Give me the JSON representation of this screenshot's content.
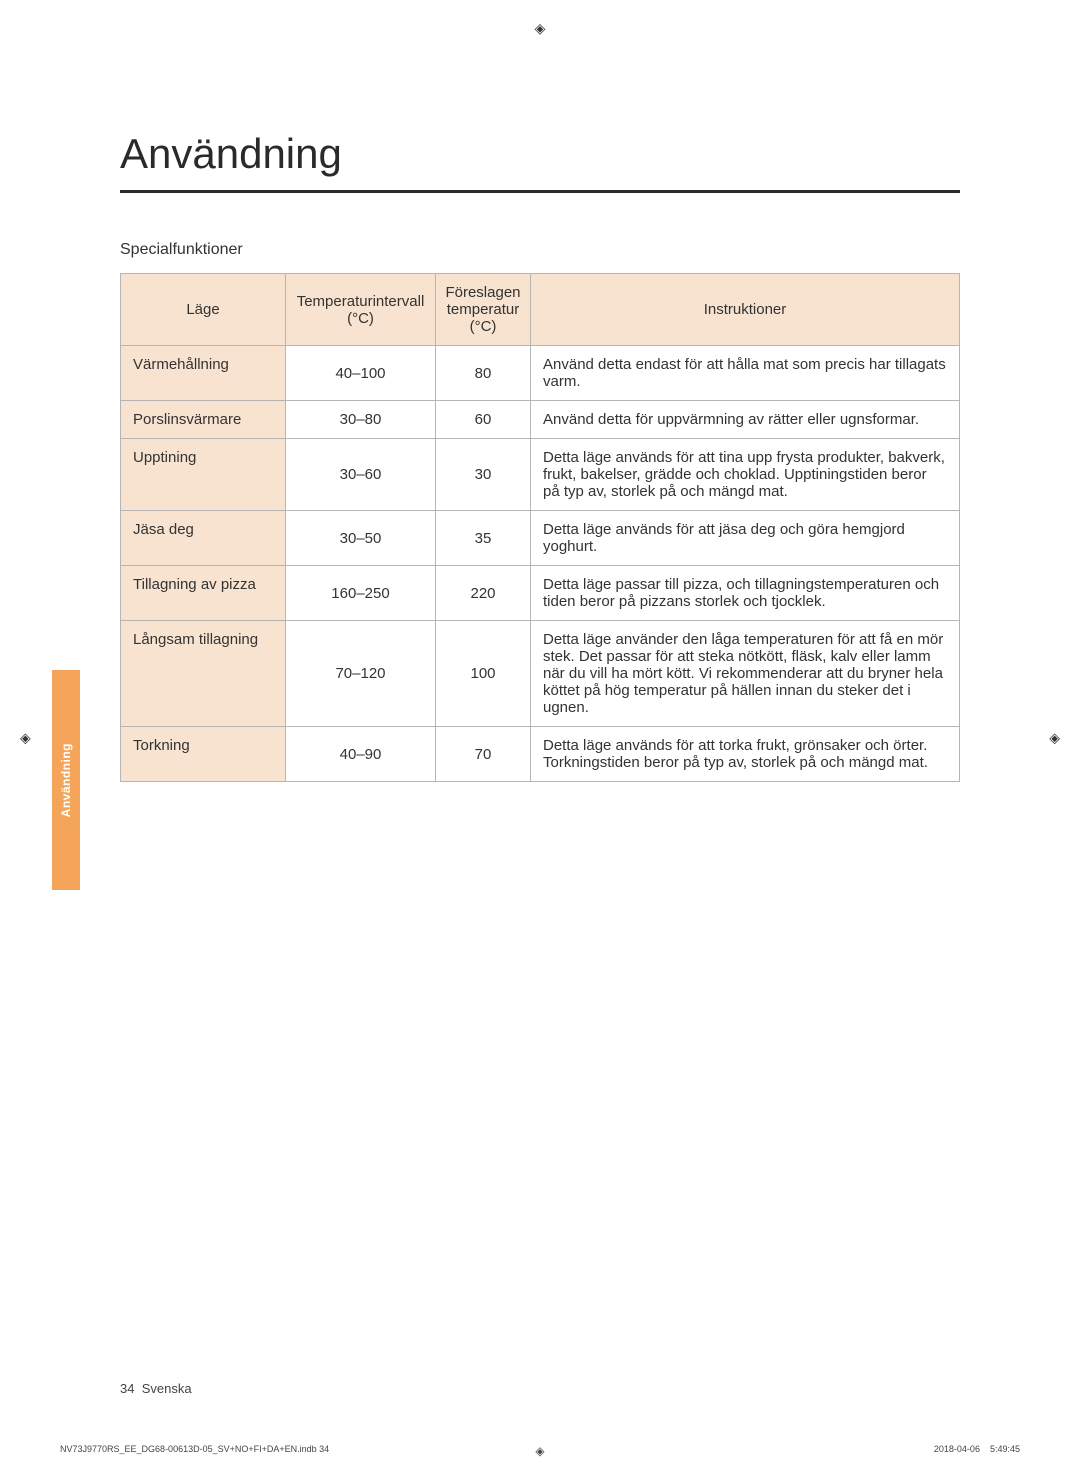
{
  "page": {
    "heading": "Användning",
    "subtitle": "Specialfunktioner",
    "side_tab": "Användning",
    "page_number_label": "34",
    "page_number_lang": "Svenska",
    "print_filename": "NV73J9770RS_EE_DG68-00613D-05_SV+NO+FI+DA+EN.indb   34",
    "print_date": "2018-04-06",
    "print_time": "5:49:45"
  },
  "table": {
    "columns": [
      "Läge",
      "Temperaturintervall (°C)",
      "Föreslagen temperatur (°C)",
      "Instruktioner"
    ],
    "rows": [
      {
        "mode": "Värmehållning",
        "range": "40–100",
        "temp": "80",
        "instr": "Använd detta endast för att hålla mat som precis har tillagats varm."
      },
      {
        "mode": "Porslinsvärmare",
        "range": "30–80",
        "temp": "60",
        "instr": "Använd detta för uppvärmning av rätter eller ugnsformar."
      },
      {
        "mode": "Upptining",
        "range": "30–60",
        "temp": "30",
        "instr": "Detta läge används för att tina upp frysta produkter, bakverk, frukt, bakelser, grädde och choklad. Upptiningstiden beror på typ av, storlek på och mängd mat."
      },
      {
        "mode": "Jäsa deg",
        "range": "30–50",
        "temp": "35",
        "instr": "Detta läge används för att jäsa deg och göra hemgjord yoghurt."
      },
      {
        "mode": "Tillagning av pizza",
        "range": "160–250",
        "temp": "220",
        "instr": "Detta läge passar till pizza, och tillagningstemperaturen och tiden beror på pizzans storlek och tjocklek."
      },
      {
        "mode": "Långsam tillagning",
        "range": "70–120",
        "temp": "100",
        "instr": "Detta läge använder den låga temperaturen för att få en mör stek. Det passar för att steka nötkött, fläsk, kalv eller lamm när du vill ha mört kött. Vi rekommenderar att du bryner hela köttet på hög temperatur på hällen innan du steker det i ugnen."
      },
      {
        "mode": "Torkning",
        "range": "40–90",
        "temp": "70",
        "instr": "Detta läge används för att torka frukt, grönsaker och örter. Torkningstiden beror på typ av, storlek på och mängd mat."
      }
    ]
  },
  "style": {
    "heading_color": "#2a2a2a",
    "header_bg": "#f7e3d0",
    "border_color": "#b5b5b5",
    "tab_bg": "#f5a55a",
    "tab_text_color": "#ffffff"
  }
}
